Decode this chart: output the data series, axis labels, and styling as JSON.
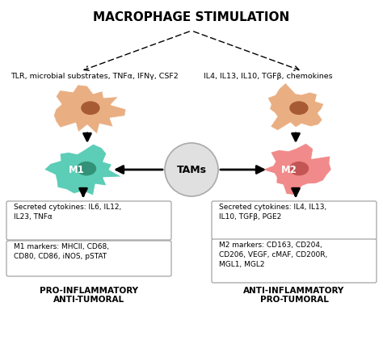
{
  "title": "MACROPHAGE STIMULATION",
  "background_color": "#ffffff",
  "title_fontsize": 11,
  "left_stimuli": "TLR, microbial substrates, TNFα, IFNγ, CSF2",
  "right_stimuli": "IL4, IL13, IL10, TGFβ, chemokines",
  "m1_label": "M1",
  "m2_label": "M2",
  "tams_label": "TAMs",
  "left_box1": "Secreted cytokines: IL6, IL12,\nIL23, TNFα",
  "left_box2": "M1 markers: MHCII, CD68,\nCD80, CD86, iNOS, pSTAT",
  "right_box1": "Secreted cytokines: IL4, IL13,\nIL10, TGFβ, PGE2",
  "right_box2": "M2 markers: CD163, CD204,\nCD206, VEGF, cMAF, CD200R,\nMGL1, MGL2",
  "left_footer1": "PRO-INFLAMMATORY",
  "left_footer2": "ANTI-TUMORAL",
  "right_footer1": "ANTI-INFLAMMATORY",
  "right_footer2": "PRO-TUMORAL",
  "m1_cell_color": "#4ec9b0",
  "m2_cell_color": "#f08080",
  "stimuli_cell_color": "#e8a878",
  "stimuli_nucleus_color": "#a0522d",
  "m1_nucleus_color": "#2e8b70",
  "m2_nucleus_color": "#c05050",
  "tams_circle_color": "#e0e0e0",
  "tams_circle_edge": "#aaaaaa",
  "box_edge_color": "#999999",
  "arrow_color": "#111111"
}
